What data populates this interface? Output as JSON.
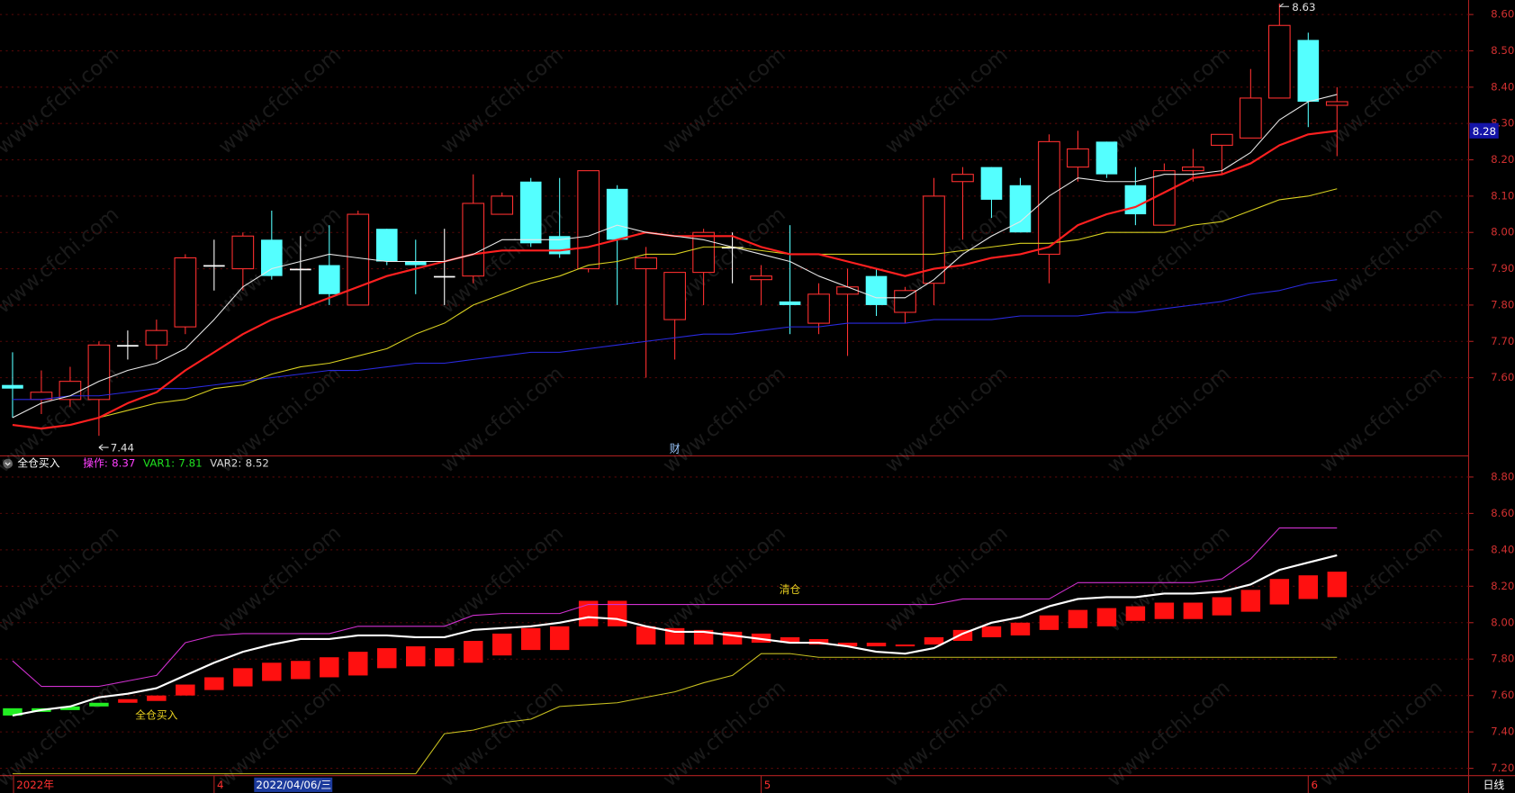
{
  "chart_data": [
    {
      "type": "candlestick",
      "categories": [
        "2022年",
        null,
        null,
        null,
        null,
        null,
        null,
        "4",
        null,
        null,
        null,
        null,
        null,
        null,
        null,
        null,
        null,
        null,
        null,
        null,
        null,
        null,
        null,
        null,
        null,
        null,
        "5",
        null,
        null,
        null,
        null,
        null,
        null,
        null,
        null,
        null,
        null,
        null,
        null,
        null,
        null,
        null,
        null,
        null,
        null,
        "6",
        null
      ],
      "open": [
        7.58,
        7.54,
        7.54,
        7.54,
        7.69,
        7.69,
        7.74,
        7.91,
        7.9,
        7.98,
        7.9,
        7.91,
        7.8,
        8.01,
        7.92,
        7.88,
        7.88,
        8.05,
        8.14,
        7.99,
        7.9,
        8.12,
        7.9,
        7.76,
        7.89,
        7.96,
        7.87,
        7.81,
        7.75,
        7.83,
        7.88,
        7.78,
        7.86,
        8.14,
        8.18,
        8.13,
        7.94,
        8.18,
        8.25,
        8.13,
        8.02,
        8.17,
        8.24,
        8.26,
        8.37,
        8.53,
        8.35
      ],
      "high": [
        7.67,
        7.62,
        7.63,
        7.7,
        7.73,
        7.76,
        7.94,
        7.98,
        8.0,
        8.06,
        7.99,
        8.02,
        8.06,
        8.01,
        7.98,
        8.01,
        8.16,
        8.11,
        8.15,
        8.15,
        8.17,
        8.13,
        7.96,
        7.89,
        8.01,
        8.0,
        7.91,
        8.02,
        7.86,
        7.9,
        7.9,
        7.85,
        8.15,
        8.18,
        8.18,
        8.15,
        8.27,
        8.28,
        8.25,
        8.18,
        8.19,
        8.23,
        8.27,
        8.45,
        8.63,
        8.55,
        8.4
      ],
      "low": [
        7.49,
        7.5,
        7.52,
        7.44,
        7.65,
        7.65,
        7.72,
        7.84,
        7.84,
        7.87,
        7.8,
        7.8,
        7.8,
        7.91,
        7.83,
        7.8,
        7.86,
        8.05,
        7.96,
        7.93,
        7.89,
        7.8,
        7.6,
        7.65,
        7.8,
        7.86,
        7.8,
        7.72,
        7.72,
        7.66,
        7.77,
        7.75,
        7.8,
        7.98,
        8.04,
        8.0,
        7.86,
        8.14,
        8.15,
        8.02,
        8.02,
        8.14,
        8.16,
        8.26,
        8.37,
        8.29,
        8.21
      ],
      "close": [
        7.57,
        7.56,
        7.59,
        7.69,
        7.69,
        7.73,
        7.93,
        7.91,
        7.99,
        7.88,
        7.9,
        7.83,
        8.05,
        7.92,
        7.91,
        7.88,
        8.08,
        8.1,
        7.97,
        7.94,
        8.17,
        7.98,
        7.93,
        7.89,
        8.0,
        7.96,
        7.88,
        7.8,
        7.83,
        7.85,
        7.8,
        7.84,
        8.1,
        8.16,
        8.09,
        8.0,
        8.25,
        8.23,
        8.16,
        8.05,
        8.17,
        8.18,
        8.27,
        8.37,
        8.57,
        8.36,
        8.36
      ],
      "up_color": "#ff3030",
      "down_color": "#54ffff",
      "flat_color": "#ffffff",
      "series": [
        {
          "color": "#e8e8e8",
          "values": [
            7.49,
            7.53,
            7.55,
            7.59,
            7.62,
            7.64,
            7.68,
            7.76,
            7.85,
            7.9,
            7.92,
            7.94,
            7.93,
            7.92,
            7.92,
            7.92,
            7.94,
            7.98,
            7.98,
            7.98,
            7.99,
            8.02,
            8.0,
            7.99,
            7.98,
            7.96,
            7.94,
            7.92,
            7.88,
            7.85,
            7.82,
            7.82,
            7.87,
            7.94,
            7.99,
            8.03,
            8.1,
            8.15,
            8.14,
            8.14,
            8.16,
            8.16,
            8.17,
            8.22,
            8.31,
            8.36,
            8.38
          ]
        },
        {
          "color": "#ff2020",
          "values": [
            7.47,
            7.46,
            7.47,
            7.49,
            7.53,
            7.56,
            7.62,
            7.67,
            7.72,
            7.76,
            7.79,
            7.82,
            7.85,
            7.88,
            7.9,
            7.92,
            7.94,
            7.95,
            7.95,
            7.95,
            7.96,
            7.98,
            8.0,
            7.99,
            7.99,
            7.99,
            7.96,
            7.94,
            7.94,
            7.92,
            7.9,
            7.88,
            7.9,
            7.91,
            7.93,
            7.94,
            7.96,
            8.02,
            8.05,
            8.07,
            8.11,
            8.15,
            8.16,
            8.19,
            8.24,
            8.27,
            8.28
          ]
        },
        {
          "color": "#d8d020",
          "values": [
            null,
            null,
            null,
            7.49,
            7.51,
            7.53,
            7.54,
            7.57,
            7.58,
            7.61,
            7.63,
            7.64,
            7.66,
            7.68,
            7.72,
            7.75,
            7.8,
            7.83,
            7.86,
            7.88,
            7.91,
            7.92,
            7.94,
            7.94,
            7.96,
            7.96,
            7.95,
            7.94,
            7.94,
            7.94,
            7.94,
            7.94,
            7.94,
            7.95,
            7.96,
            7.97,
            7.97,
            7.98,
            8.0,
            8.0,
            8.0,
            8.02,
            8.03,
            8.06,
            8.09,
            8.1,
            8.12
          ]
        },
        {
          "color": "#2a2ae0",
          "values": [
            7.54,
            7.54,
            7.55,
            7.55,
            7.56,
            7.57,
            7.57,
            7.58,
            7.59,
            7.6,
            7.61,
            7.62,
            7.62,
            7.63,
            7.64,
            7.64,
            7.65,
            7.66,
            7.67,
            7.67,
            7.68,
            7.69,
            7.7,
            7.71,
            7.72,
            7.72,
            7.73,
            7.74,
            7.74,
            7.75,
            7.75,
            7.75,
            7.76,
            7.76,
            7.76,
            7.77,
            7.77,
            7.77,
            7.78,
            7.78,
            7.79,
            7.8,
            7.81,
            7.83,
            7.84,
            7.86,
            7.87
          ]
        }
      ],
      "ylim": [
        7.39,
        8.64
      ],
      "yticks": [
        {
          "value": 7.6,
          "label": "7.60"
        },
        {
          "value": 7.7,
          "label": "7.70"
        },
        {
          "value": 7.8,
          "label": "7.80"
        },
        {
          "value": 7.9,
          "label": "7.90"
        },
        {
          "value": 8.0,
          "label": "8.00"
        },
        {
          "value": 8.1,
          "label": "8.10"
        },
        {
          "value": 8.2,
          "label": "8.20"
        },
        {
          "value": 8.3,
          "label": "8.30"
        },
        {
          "value": 8.4,
          "label": "8.40"
        },
        {
          "value": 8.5,
          "label": "8.50"
        },
        {
          "value": 8.6,
          "label": "8.60"
        }
      ],
      "grid": true,
      "price_tag": 8.28,
      "event": {
        "index": 23,
        "text": "财"
      },
      "cursor_date": "2022/04/06/三",
      "period": "日线",
      "watermark": "www.cfchi.com"
    },
    {
      "type": "indicator",
      "title": "全仓买入",
      "series": [
        {
          "name": "操作:",
          "color": "#ffffff",
          "legend_color": "#ff40ff",
          "values": [
            7.49,
            7.52,
            7.54,
            7.59,
            7.61,
            7.64,
            7.71,
            7.78,
            7.84,
            7.88,
            7.91,
            7.91,
            7.93,
            7.93,
            7.92,
            7.92,
            7.96,
            7.97,
            7.98,
            8.0,
            8.03,
            8.02,
            7.98,
            7.95,
            7.95,
            7.93,
            7.91,
            7.89,
            7.89,
            7.87,
            7.84,
            7.83,
            7.86,
            7.94,
            8.0,
            8.03,
            8.09,
            8.13,
            8.14,
            8.14,
            8.16,
            8.16,
            8.17,
            8.21,
            8.29,
            8.33,
            8.37
          ]
        },
        {
          "name": "VAR1:",
          "color": "#c8c020",
          "legend_color": "#20e020",
          "values": [
            7.17,
            7.17,
            7.17,
            7.17,
            7.17,
            7.17,
            7.17,
            7.17,
            7.17,
            7.17,
            7.17,
            7.17,
            7.17,
            7.17,
            7.17,
            7.39,
            7.41,
            7.45,
            7.47,
            7.54,
            7.55,
            7.56,
            7.59,
            7.62,
            7.67,
            7.71,
            7.83,
            7.83,
            7.81,
            7.81,
            7.81,
            7.81,
            7.81,
            7.81,
            7.81,
            7.81,
            7.81,
            7.81,
            7.81,
            7.81,
            7.81,
            7.81,
            7.81,
            7.81,
            7.81,
            7.81,
            7.81
          ]
        },
        {
          "name": "VAR2:",
          "color": "#d030d0",
          "legend_color": "#d8d8d8",
          "values": [
            7.79,
            7.65,
            7.65,
            7.65,
            7.68,
            7.71,
            7.89,
            7.93,
            7.94,
            7.94,
            7.94,
            7.94,
            7.98,
            7.98,
            7.98,
            7.98,
            8.04,
            8.05,
            8.05,
            8.05,
            8.1,
            8.1,
            8.1,
            8.1,
            8.1,
            8.1,
            8.1,
            8.1,
            8.1,
            8.1,
            8.1,
            8.1,
            8.1,
            8.13,
            8.13,
            8.13,
            8.13,
            8.22,
            8.22,
            8.22,
            8.22,
            8.22,
            8.24,
            8.35,
            8.52,
            8.52,
            8.52
          ]
        }
      ],
      "blocks": {
        "top": [
          7.53,
          7.53,
          7.54,
          7.56,
          7.58,
          7.6,
          7.66,
          7.7,
          7.75,
          7.78,
          7.79,
          7.81,
          7.84,
          7.86,
          7.87,
          7.86,
          7.9,
          7.94,
          7.97,
          7.98,
          8.12,
          8.12,
          7.98,
          7.97,
          7.96,
          7.95,
          7.94,
          7.92,
          7.91,
          7.89,
          7.89,
          7.88,
          7.92,
          7.96,
          7.98,
          8.0,
          8.04,
          8.07,
          8.08,
          8.09,
          8.11,
          8.11,
          8.14,
          8.18,
          8.24,
          8.26,
          8.28
        ],
        "bottom": [
          7.49,
          7.51,
          7.52,
          7.54,
          7.56,
          7.57,
          7.6,
          7.63,
          7.65,
          7.68,
          7.69,
          7.7,
          7.71,
          7.75,
          7.76,
          7.76,
          7.78,
          7.82,
          7.85,
          7.85,
          7.98,
          7.98,
          7.88,
          7.88,
          7.88,
          7.88,
          7.89,
          7.89,
          7.88,
          7.87,
          7.87,
          7.87,
          7.88,
          7.9,
          7.92,
          7.93,
          7.96,
          7.97,
          7.98,
          8.01,
          8.02,
          8.02,
          8.04,
          8.06,
          8.1,
          8.13,
          8.14
        ],
        "colors": [
          "#22ee22",
          "#22ee22",
          "#22ee22",
          "#22ee22",
          "#ff1010",
          "#ff1010",
          "#ff1010",
          "#ff1010",
          "#ff1010",
          "#ff1010",
          "#ff1010",
          "#ff1010",
          "#ff1010",
          "#ff1010",
          "#ff1010",
          "#ff1010",
          "#ff1010",
          "#ff1010",
          "#ff1010",
          "#ff1010",
          "#ff1010",
          "#ff1010",
          "#ff1010",
          "#ff1010",
          "#ff1010",
          "#ff1010",
          "#ff1010",
          "#ff1010",
          "#ff1010",
          "#ff1010",
          "#ff1010",
          "#ff1010",
          "#ff1010",
          "#ff1010",
          "#ff1010",
          "#ff1010",
          "#ff1010",
          "#ff1010",
          "#ff1010",
          "#ff1010",
          "#ff1010",
          "#ff1010",
          "#ff1010",
          "#ff1010",
          "#ff1010",
          "#ff1010",
          "#ff1010"
        ]
      },
      "annotations": [
        {
          "text": "清仓",
          "index": 27,
          "value": 8.18
        },
        {
          "text": "全仓买入",
          "index": 5,
          "value": 7.49
        }
      ],
      "ylim": [
        7.16,
        8.9
      ],
      "yticks": [
        {
          "value": 7.2,
          "label": "7.20"
        },
        {
          "value": 7.4,
          "label": "7.40"
        },
        {
          "value": 7.6,
          "label": "7.60"
        },
        {
          "value": 7.8,
          "label": "7.80"
        },
        {
          "value": 8.0,
          "label": "8.00"
        },
        {
          "value": 8.2,
          "label": "8.20"
        },
        {
          "value": 8.4,
          "label": "8.40"
        },
        {
          "value": 8.6,
          "label": "8.60"
        },
        {
          "value": 8.8,
          "label": "8.80"
        }
      ],
      "grid": true
    }
  ]
}
